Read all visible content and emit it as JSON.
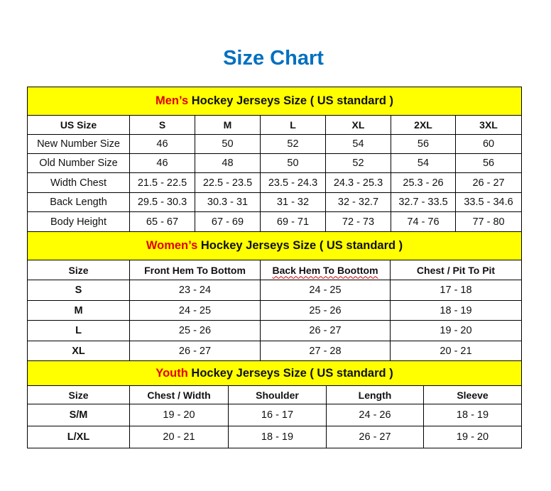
{
  "title": "Size Chart",
  "accent_color": "#0070c0",
  "banner_color": "#ffff00",
  "highlight_color": "#e00000",
  "mens": {
    "title_highlight": "Men’s",
    "title_rest": " Hockey Jerseys Size ( US standard )",
    "header": [
      "US Size",
      "S",
      "M",
      "L",
      "XL",
      "2XL",
      "3XL"
    ],
    "rows": [
      [
        "New Number Size",
        "46",
        "50",
        "52",
        "54",
        "56",
        "60"
      ],
      [
        "Old Number Size",
        "46",
        "48",
        "50",
        "52",
        "54",
        "56"
      ],
      [
        "Width Chest",
        "21.5 - 22.5",
        "22.5 - 23.5",
        "23.5 - 24.3",
        "24.3 - 25.3",
        "25.3 - 26",
        "26 - 27"
      ],
      [
        "Back Length",
        "29.5 - 30.3",
        "30.3 - 31",
        "31 - 32",
        "32 - 32.7",
        "32.7 - 33.5",
        "33.5 - 34.6"
      ],
      [
        "Body Height",
        "65 - 67",
        "67 - 69",
        "69 - 71",
        "72 - 73",
        "74 - 76",
        "77 - 80"
      ]
    ]
  },
  "womens": {
    "title_highlight": "Women’s",
    "title_rest": " Hockey Jerseys Size ( US standard )",
    "header": [
      "Size",
      "Front Hem To Bottom",
      "Back Hem To Boottom",
      "Chest / Pit To Pit"
    ],
    "rows": [
      [
        "S",
        "23 - 24",
        "24 - 25",
        "17 - 18"
      ],
      [
        "M",
        "24 - 25",
        "25 - 26",
        "18 - 19"
      ],
      [
        "L",
        "25 - 26",
        "26 - 27",
        "19 - 20"
      ],
      [
        "XL",
        "26 - 27",
        "27 - 28",
        "20 - 21"
      ]
    ]
  },
  "youth": {
    "title_highlight": "Youth",
    "title_rest": " Hockey Jerseys Size ( US standard )",
    "header": [
      "Size",
      "Chest / Width",
      "Shoulder",
      "Length",
      "Sleeve"
    ],
    "rows": [
      [
        "S/M",
        "19 - 20",
        "16 - 17",
        "24 - 26",
        "18 - 19"
      ],
      [
        "L/XL",
        "20 - 21",
        "18 - 19",
        "26 - 27",
        "19 - 20"
      ]
    ]
  }
}
